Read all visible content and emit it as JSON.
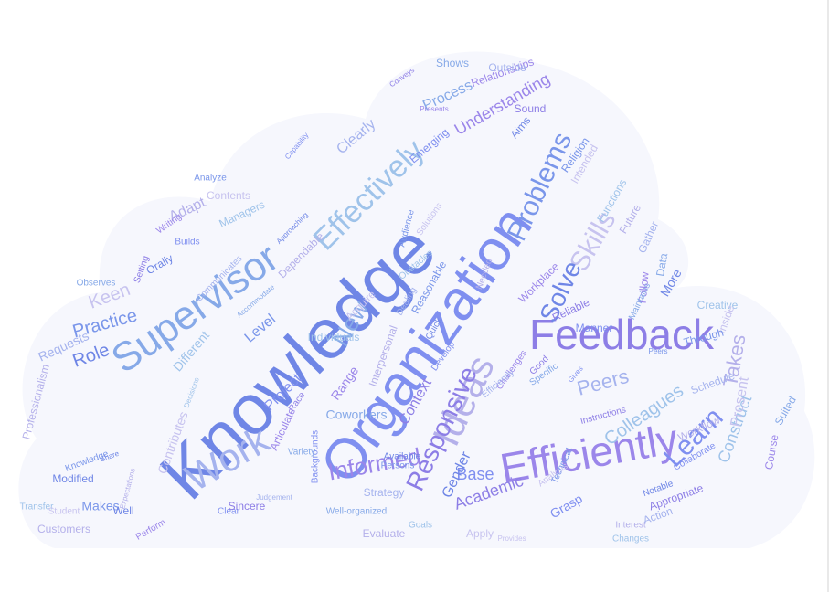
{
  "colors": {
    "cloud_fill": "#f6f7fd",
    "palette": [
      "#6f86e6",
      "#7f8ff0",
      "#8d7ee6",
      "#9b86ea",
      "#86a9e8",
      "#a5b3ee",
      "#b4b0ea",
      "#9fc3ea",
      "#c7c3ef",
      "#7a96ea"
    ]
  },
  "words": [
    {
      "text": "Knowledge",
      "size": 78
    },
    {
      "text": "Organization",
      "size": 62
    },
    {
      "text": "Feedback",
      "size": 46
    },
    {
      "text": "Efficiently",
      "size": 46
    },
    {
      "text": "Supervisor",
      "size": 44
    },
    {
      "text": "Work",
      "size": 42
    },
    {
      "text": "Ideas",
      "size": 42
    },
    {
      "text": "Effectively",
      "size": 34
    },
    {
      "text": "Skills",
      "size": 30
    },
    {
      "text": "Problems",
      "size": 30
    },
    {
      "text": "Solve",
      "size": 28
    },
    {
      "text": "Learn",
      "size": 30
    },
    {
      "text": "Responsive",
      "size": 28
    },
    {
      "text": "Informed",
      "size": 26
    },
    {
      "text": "New",
      "size": 26
    },
    {
      "text": "Peers",
      "size": 22
    },
    {
      "text": "Takes",
      "size": 22
    },
    {
      "text": "Colleagues",
      "size": 20
    },
    {
      "text": "Keen",
      "size": 20
    },
    {
      "text": "Practice",
      "size": 20
    },
    {
      "text": "Role",
      "size": 20
    },
    {
      "text": "Base",
      "size": 18
    },
    {
      "text": "Academic",
      "size": 18
    },
    {
      "text": "Understanding",
      "size": 18
    },
    {
      "text": "Process",
      "size": 16
    },
    {
      "text": "Clearly",
      "size": 16
    },
    {
      "text": "Adapt",
      "size": 16
    },
    {
      "text": "Construct",
      "size": 18
    },
    {
      "text": "Present",
      "size": 16
    },
    {
      "text": "Level",
      "size": 16
    },
    {
      "text": "Gender",
      "size": 16
    },
    {
      "text": "Project",
      "size": 16
    },
    {
      "text": "Context",
      "size": 16
    },
    {
      "text": "Range",
      "size": 14
    },
    {
      "text": "Coworkers",
      "size": 14
    },
    {
      "text": "Requests",
      "size": 14
    },
    {
      "text": "Professionalism",
      "size": 12
    },
    {
      "text": "Different",
      "size": 14
    },
    {
      "text": "Contributes",
      "size": 14
    },
    {
      "text": "Makes",
      "size": 14
    },
    {
      "text": "Modified",
      "size": 12
    },
    {
      "text": "Grasp",
      "size": 14
    },
    {
      "text": "Appropriate",
      "size": 12
    },
    {
      "text": "Course",
      "size": 12
    },
    {
      "text": "Suited",
      "size": 12
    },
    {
      "text": "Schedule",
      "size": 12
    },
    {
      "text": "Workflow",
      "size": 12
    },
    {
      "text": "Creative",
      "size": 12
    },
    {
      "text": "Inside",
      "size": 12
    },
    {
      "text": "Through",
      "size": 12
    },
    {
      "text": "More",
      "size": 14
    },
    {
      "text": "Manner",
      "size": 12
    },
    {
      "text": "Reliable",
      "size": 12
    },
    {
      "text": "Follow",
      "size": 12
    },
    {
      "text": "Data",
      "size": 12
    },
    {
      "text": "Gather",
      "size": 12
    },
    {
      "text": "Future",
      "size": 12
    },
    {
      "text": "Functions",
      "size": 12
    },
    {
      "text": "Intended",
      "size": 12
    },
    {
      "text": "Religion",
      "size": 12
    },
    {
      "text": "Aims",
      "size": 12
    },
    {
      "text": "Emerging",
      "size": 12
    },
    {
      "text": "Sound",
      "size": 12
    },
    {
      "text": "Relationships",
      "size": 12
    },
    {
      "text": "Shows",
      "size": 12
    },
    {
      "text": "Outside",
      "size": 12
    },
    {
      "text": "Dependable",
      "size": 12
    },
    {
      "text": "Managers",
      "size": 12
    },
    {
      "text": "Contents",
      "size": 12
    },
    {
      "text": "Analyze",
      "size": 10
    },
    {
      "text": "Orally",
      "size": 12
    },
    {
      "text": "Builds",
      "size": 10
    },
    {
      "text": "Setting",
      "size": 10
    },
    {
      "text": "Writing",
      "size": 10
    },
    {
      "text": "Observes",
      "size": 10
    },
    {
      "text": "Communicates",
      "size": 10
    },
    {
      "text": "Customers",
      "size": 12
    },
    {
      "text": "Transfer",
      "size": 10
    },
    {
      "text": "Student",
      "size": 10
    },
    {
      "text": "Knowledge",
      "size": 10
    },
    {
      "text": "Well",
      "size": 12
    },
    {
      "text": "Clear",
      "size": 10
    },
    {
      "text": "Sincere",
      "size": 12
    },
    {
      "text": "Perform",
      "size": 10
    },
    {
      "text": "Well-organized",
      "size": 10
    },
    {
      "text": "Strategy",
      "size": 12
    },
    {
      "text": "Evaluate",
      "size": 12
    },
    {
      "text": "Goals",
      "size": 10
    },
    {
      "text": "Apply",
      "size": 12
    },
    {
      "text": "Persons",
      "size": 10
    },
    {
      "text": "Available",
      "size": 10
    },
    {
      "text": "Backgrounds",
      "size": 10
    },
    {
      "text": "Race",
      "size": 10
    },
    {
      "text": "Articulate",
      "size": 12
    },
    {
      "text": "Variety",
      "size": 10
    },
    {
      "text": "Dealing",
      "size": 10
    },
    {
      "text": "Interpersonal",
      "size": 12
    },
    {
      "text": "Individuals",
      "size": 12
    },
    {
      "text": "Acquire",
      "size": 12
    },
    {
      "text": "Reasonable",
      "size": 12
    },
    {
      "text": "Quick",
      "size": 10
    },
    {
      "text": "Develop",
      "size": 10
    },
    {
      "text": "Good",
      "size": 10
    },
    {
      "text": "Workplace",
      "size": 12
    },
    {
      "text": "Maintains",
      "size": 10
    },
    {
      "text": "Action",
      "size": 12
    },
    {
      "text": "Interest",
      "size": 10
    },
    {
      "text": "Changes",
      "size": 10
    },
    {
      "text": "Analysis",
      "size": 10
    },
    {
      "text": "Technical",
      "size": 10
    },
    {
      "text": "Notable",
      "size": 10
    },
    {
      "text": "Collaborate",
      "size": 10
    },
    {
      "text": "Instructions",
      "size": 10
    },
    {
      "text": "Challenges",
      "size": 10
    },
    {
      "text": "Specific",
      "size": 10
    },
    {
      "text": "Efficiently",
      "size": 10
    },
    {
      "text": "Needed",
      "size": 10
    },
    {
      "text": "Obstacles",
      "size": 10
    },
    {
      "text": "Solutions",
      "size": 10
    },
    {
      "text": "Audience",
      "size": 10
    },
    {
      "text": "Approaching",
      "size": 8
    },
    {
      "text": "Capability",
      "size": 8
    },
    {
      "text": "Conveys",
      "size": 8
    },
    {
      "text": "Presents",
      "size": 8
    },
    {
      "text": "Accommodate",
      "size": 8
    },
    {
      "text": "Judgement",
      "size": 8
    },
    {
      "text": "Expectations",
      "size": 8
    },
    {
      "text": "Decisions",
      "size": 8
    },
    {
      "text": "Provides",
      "size": 8
    },
    {
      "text": "Peers",
      "size": 8
    },
    {
      "text": "Share",
      "size": 8
    },
    {
      "text": "Gives",
      "size": 8
    }
  ]
}
